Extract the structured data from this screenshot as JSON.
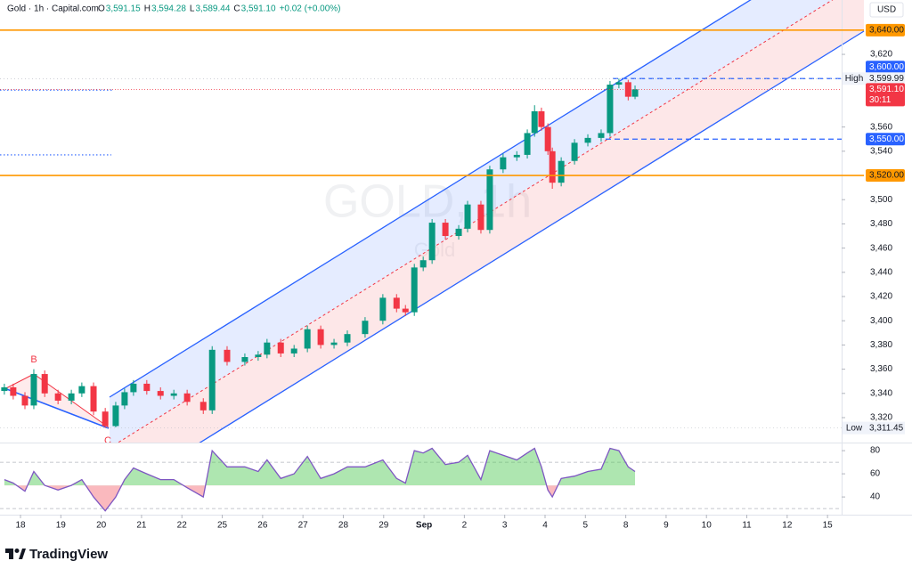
{
  "header": {
    "symbol": "Gold · 1h · Capital.com",
    "ohlc": [
      {
        "key": "O",
        "value": "3,591.15"
      },
      {
        "key": "H",
        "value": "3,594.28"
      },
      {
        "key": "L",
        "value": "3,589.44"
      },
      {
        "key": "C",
        "value": "3,591.10"
      }
    ],
    "change": "+0.02 (+0.00%)",
    "currency": "USD"
  },
  "brand": "TradingView",
  "watermark": {
    "title": "GOLD, 1h",
    "subtitle": "Gold"
  },
  "annotations": [
    "B",
    "C"
  ],
  "chart_data": [
    {
      "type": "candlestick",
      "up_color": "#089981",
      "down_color": "#f23645",
      "x": [
        -0.4,
        -0.18,
        0.11,
        0.33,
        0.6,
        0.93,
        1.26,
        1.52,
        1.81,
        2.1,
        2.36,
        2.58,
        2.8,
        3.13,
        3.47,
        3.8,
        4.13,
        4.53,
        4.75,
        5.12,
        5.56,
        5.89,
        6.11,
        6.45,
        6.78,
        7.11,
        7.44,
        7.77,
        8.1,
        8.54,
        8.98,
        9.32,
        9.54,
        9.76,
        9.98,
        10.2,
        10.53,
        10.86,
        11.08,
        11.41,
        11.63,
        11.96,
        12.3,
        12.56,
        12.74,
        12.91,
        13.07,
        13.18,
        13.4,
        13.73,
        14.06,
        14.39,
        14.61,
        14.83,
        15.06,
        15.23
      ],
      "open": [
        3342,
        3345,
        3338,
        3330,
        3356,
        3340,
        3334,
        3340,
        3346,
        3325,
        3313,
        3330,
        3341,
        3348,
        3342,
        3338,
        3340,
        3333,
        3326,
        3376,
        3366,
        3370,
        3372,
        3382,
        3373,
        3377,
        3393,
        3380,
        3382,
        3389,
        3400,
        3419,
        3410,
        3407,
        3444,
        3450,
        3481,
        3470,
        3476,
        3496,
        3475,
        3525,
        3535,
        3537,
        3555,
        3573,
        3560,
        3540,
        3514,
        3532,
        3547,
        3551,
        3555,
        3595,
        3597,
        3585
      ],
      "high": [
        3348,
        3348,
        3341,
        3360,
        3359,
        3343,
        3343,
        3349,
        3349,
        3328,
        3333,
        3344,
        3351,
        3351,
        3345,
        3343,
        3343,
        3336,
        3379,
        3379,
        3373,
        3375,
        3385,
        3385,
        3380,
        3396,
        3396,
        3385,
        3392,
        3403,
        3422,
        3422,
        3413,
        3447,
        3453,
        3484,
        3484,
        3479,
        3499,
        3499,
        3528,
        3538,
        3540,
        3558,
        3578,
        3576,
        3563,
        3543,
        3535,
        3550,
        3554,
        3558,
        3598,
        3599.99,
        3599,
        3594.28
      ],
      "low": [
        3339,
        3335,
        3327,
        3327,
        3337,
        3331,
        3331,
        3337,
        3322,
        3311.45,
        3312,
        3327,
        3338,
        3339,
        3335,
        3335,
        3330,
        3323,
        3323,
        3363,
        3363,
        3367,
        3369,
        3370,
        3370,
        3374,
        3377,
        3377,
        3379,
        3386,
        3397,
        3407,
        3404,
        3404,
        3441,
        3447,
        3467,
        3467,
        3473,
        3472,
        3472,
        3522,
        3532,
        3534,
        3552,
        3557,
        3537,
        3509,
        3511,
        3529,
        3544,
        3548,
        3552,
        3592,
        3582,
        3583
      ],
      "close": [
        3345,
        3338,
        3330,
        3356,
        3340,
        3334,
        3340,
        3346,
        3325,
        3313,
        3330,
        3341,
        3348,
        3342,
        3338,
        3340,
        3333,
        3326,
        3376,
        3366,
        3370,
        3372,
        3382,
        3373,
        3377,
        3393,
        3380,
        3382,
        3389,
        3400,
        3419,
        3410,
        3407,
        3444,
        3450,
        3481,
        3470,
        3476,
        3496,
        3475,
        3525,
        3535,
        3537,
        3555,
        3573,
        3560,
        3540,
        3514,
        3532,
        3547,
        3551,
        3555,
        3595,
        3597,
        3585,
        3591.1
      ],
      "xlim": [
        -0.508,
        20.35
      ],
      "xticks": [
        {
          "value": 0,
          "label": "18"
        },
        {
          "value": 1,
          "label": "19"
        },
        {
          "value": 2,
          "label": "20"
        },
        {
          "value": 3,
          "label": "21"
        },
        {
          "value": 4,
          "label": "22"
        },
        {
          "value": 5,
          "label": "25"
        },
        {
          "value": 6,
          "label": "26"
        },
        {
          "value": 7,
          "label": "27"
        },
        {
          "value": 8,
          "label": "28"
        },
        {
          "value": 9,
          "label": "29"
        },
        {
          "value": 10,
          "label": "Sep"
        },
        {
          "value": 11,
          "label": "2"
        },
        {
          "value": 12,
          "label": "3"
        },
        {
          "value": 13,
          "label": "4"
        },
        {
          "value": 14,
          "label": "5"
        },
        {
          "value": 15,
          "label": "8"
        },
        {
          "value": 16,
          "label": "9"
        },
        {
          "value": 17,
          "label": "10"
        },
        {
          "value": 18,
          "label": "11"
        },
        {
          "value": 19,
          "label": "12"
        },
        {
          "value": 20,
          "label": "15"
        }
      ],
      "ylim": [
        3299.4,
        3664.9
      ],
      "yticks": [
        {
          "value": 3320,
          "label": "3,320"
        },
        {
          "value": 3340,
          "label": "3,340"
        },
        {
          "value": 3360,
          "label": "3,360"
        },
        {
          "value": 3380,
          "label": "3,380"
        },
        {
          "value": 3400,
          "label": "3,400"
        },
        {
          "value": 3420,
          "label": "3,420"
        },
        {
          "value": 3440,
          "label": "3,440"
        },
        {
          "value": 3460,
          "label": "3,460"
        },
        {
          "value": 3480,
          "label": "3,480"
        },
        {
          "value": 3500,
          "label": "3,500"
        },
        {
          "value": 3540,
          "label": "3,540"
        },
        {
          "value": 3560,
          "label": "3,560"
        },
        {
          "value": 3620,
          "label": "3,620"
        }
      ],
      "grid": false,
      "levels": [
        {
          "value": 3640,
          "label": "3,640.00",
          "color": "#ff9800",
          "style": "solid"
        },
        {
          "value": 3520,
          "label": "3,520.00",
          "color": "#ff9800",
          "style": "solid"
        },
        {
          "value": 3600,
          "label": "3,600.00",
          "color": "#2962ff",
          "style": "dashed"
        },
        {
          "value": 3550,
          "label": "3,550.00",
          "color": "#2962ff",
          "style": "dashed"
        },
        {
          "value": 3590.5,
          "color": "#2962ff",
          "style": "dotted"
        },
        {
          "value": 3537,
          "color": "#2962ff",
          "style": "dotted"
        }
      ],
      "extremes": [
        {
          "name": "High",
          "value": 3599.99,
          "label": "3,599.99"
        },
        {
          "name": "Low",
          "value": 3311.45,
          "label": "3,311.45"
        }
      ],
      "last": {
        "value": 3591.1,
        "label": "3,591.10",
        "countdown": "30:11",
        "color": "#f23645"
      }
    },
    {
      "type": "line",
      "color": "#7e57c2",
      "x": [
        -0.4,
        -0.18,
        0.11,
        0.33,
        0.6,
        0.93,
        1.26,
        1.52,
        1.81,
        2.1,
        2.36,
        2.58,
        2.8,
        3.13,
        3.47,
        3.8,
        4.13,
        4.53,
        4.75,
        5.12,
        5.56,
        5.89,
        6.11,
        6.45,
        6.78,
        7.11,
        7.44,
        7.77,
        8.1,
        8.54,
        8.98,
        9.32,
        9.54,
        9.76,
        9.98,
        10.2,
        10.53,
        10.86,
        11.08,
        11.41,
        11.63,
        11.96,
        12.3,
        12.56,
        12.74,
        12.91,
        13.07,
        13.18,
        13.4,
        13.73,
        14.06,
        14.39,
        14.61,
        14.83,
        15.06,
        15.23
      ],
      "values": [
        55,
        52,
        45,
        62,
        50,
        46,
        50,
        55,
        40,
        28,
        40,
        55,
        65,
        60,
        55,
        55,
        48,
        40,
        80,
        66,
        66,
        62,
        72,
        56,
        60,
        75,
        56,
        60,
        66,
        66,
        72,
        56,
        52,
        80,
        78,
        82,
        68,
        70,
        76,
        55,
        80,
        76,
        72,
        78,
        82,
        66,
        46,
        40,
        56,
        58,
        62,
        64,
        82,
        80,
        66,
        62
      ],
      "xlim": [
        -0.508,
        20.35
      ],
      "ylim": [
        27,
        87
      ],
      "yticks": [
        80,
        60,
        40
      ],
      "bands": [
        70,
        30
      ],
      "midline": 50,
      "fill_up": "rgba(76,200,80,0.45)",
      "fill_down": "rgba(242,54,69,0.35)"
    }
  ]
}
